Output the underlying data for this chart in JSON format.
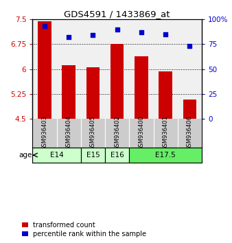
{
  "title": "GDS4591 / 1433869_at",
  "samples": [
    "GSM936403",
    "GSM936404",
    "GSM936405",
    "GSM936402",
    "GSM936400",
    "GSM936401",
    "GSM936406"
  ],
  "transformed_counts": [
    7.45,
    6.12,
    6.05,
    6.75,
    6.38,
    5.92,
    5.07
  ],
  "percentile_ranks": [
    93,
    82,
    84,
    90,
    87,
    85,
    73
  ],
  "bar_color": "#cc0000",
  "dot_color": "#0000cc",
  "yticks_left": [
    4.5,
    5.25,
    6.0,
    6.75,
    7.5
  ],
  "ylim_left": [
    4.5,
    7.5
  ],
  "yticks_right": [
    0,
    25,
    50,
    75,
    100
  ],
  "ylim_right": [
    0,
    100
  ],
  "ytick_labels_left": [
    "4.5",
    "5.25",
    "6",
    "6.75",
    "7.5"
  ],
  "ytick_labels_right": [
    "0",
    "25",
    "50",
    "75",
    "100%"
  ],
  "age_group_spans": [
    {
      "label": "E14",
      "start": 0,
      "end": 2,
      "color": "#ccffcc"
    },
    {
      "label": "E15",
      "start": 2,
      "end": 3,
      "color": "#ccffcc"
    },
    {
      "label": "E16",
      "start": 3,
      "end": 4,
      "color": "#ccffcc"
    },
    {
      "label": "E17.5",
      "start": 4,
      "end": 7,
      "color": "#66ee66"
    }
  ],
  "left_tick_color": "#cc0000",
  "right_tick_color": "#0000cc",
  "plot_bg_color": "#f0f0f0",
  "sample_bg_color": "#cccccc",
  "legend_labels": [
    "transformed count",
    "percentile rank within the sample"
  ],
  "legend_colors": [
    "#cc0000",
    "#0000cc"
  ]
}
